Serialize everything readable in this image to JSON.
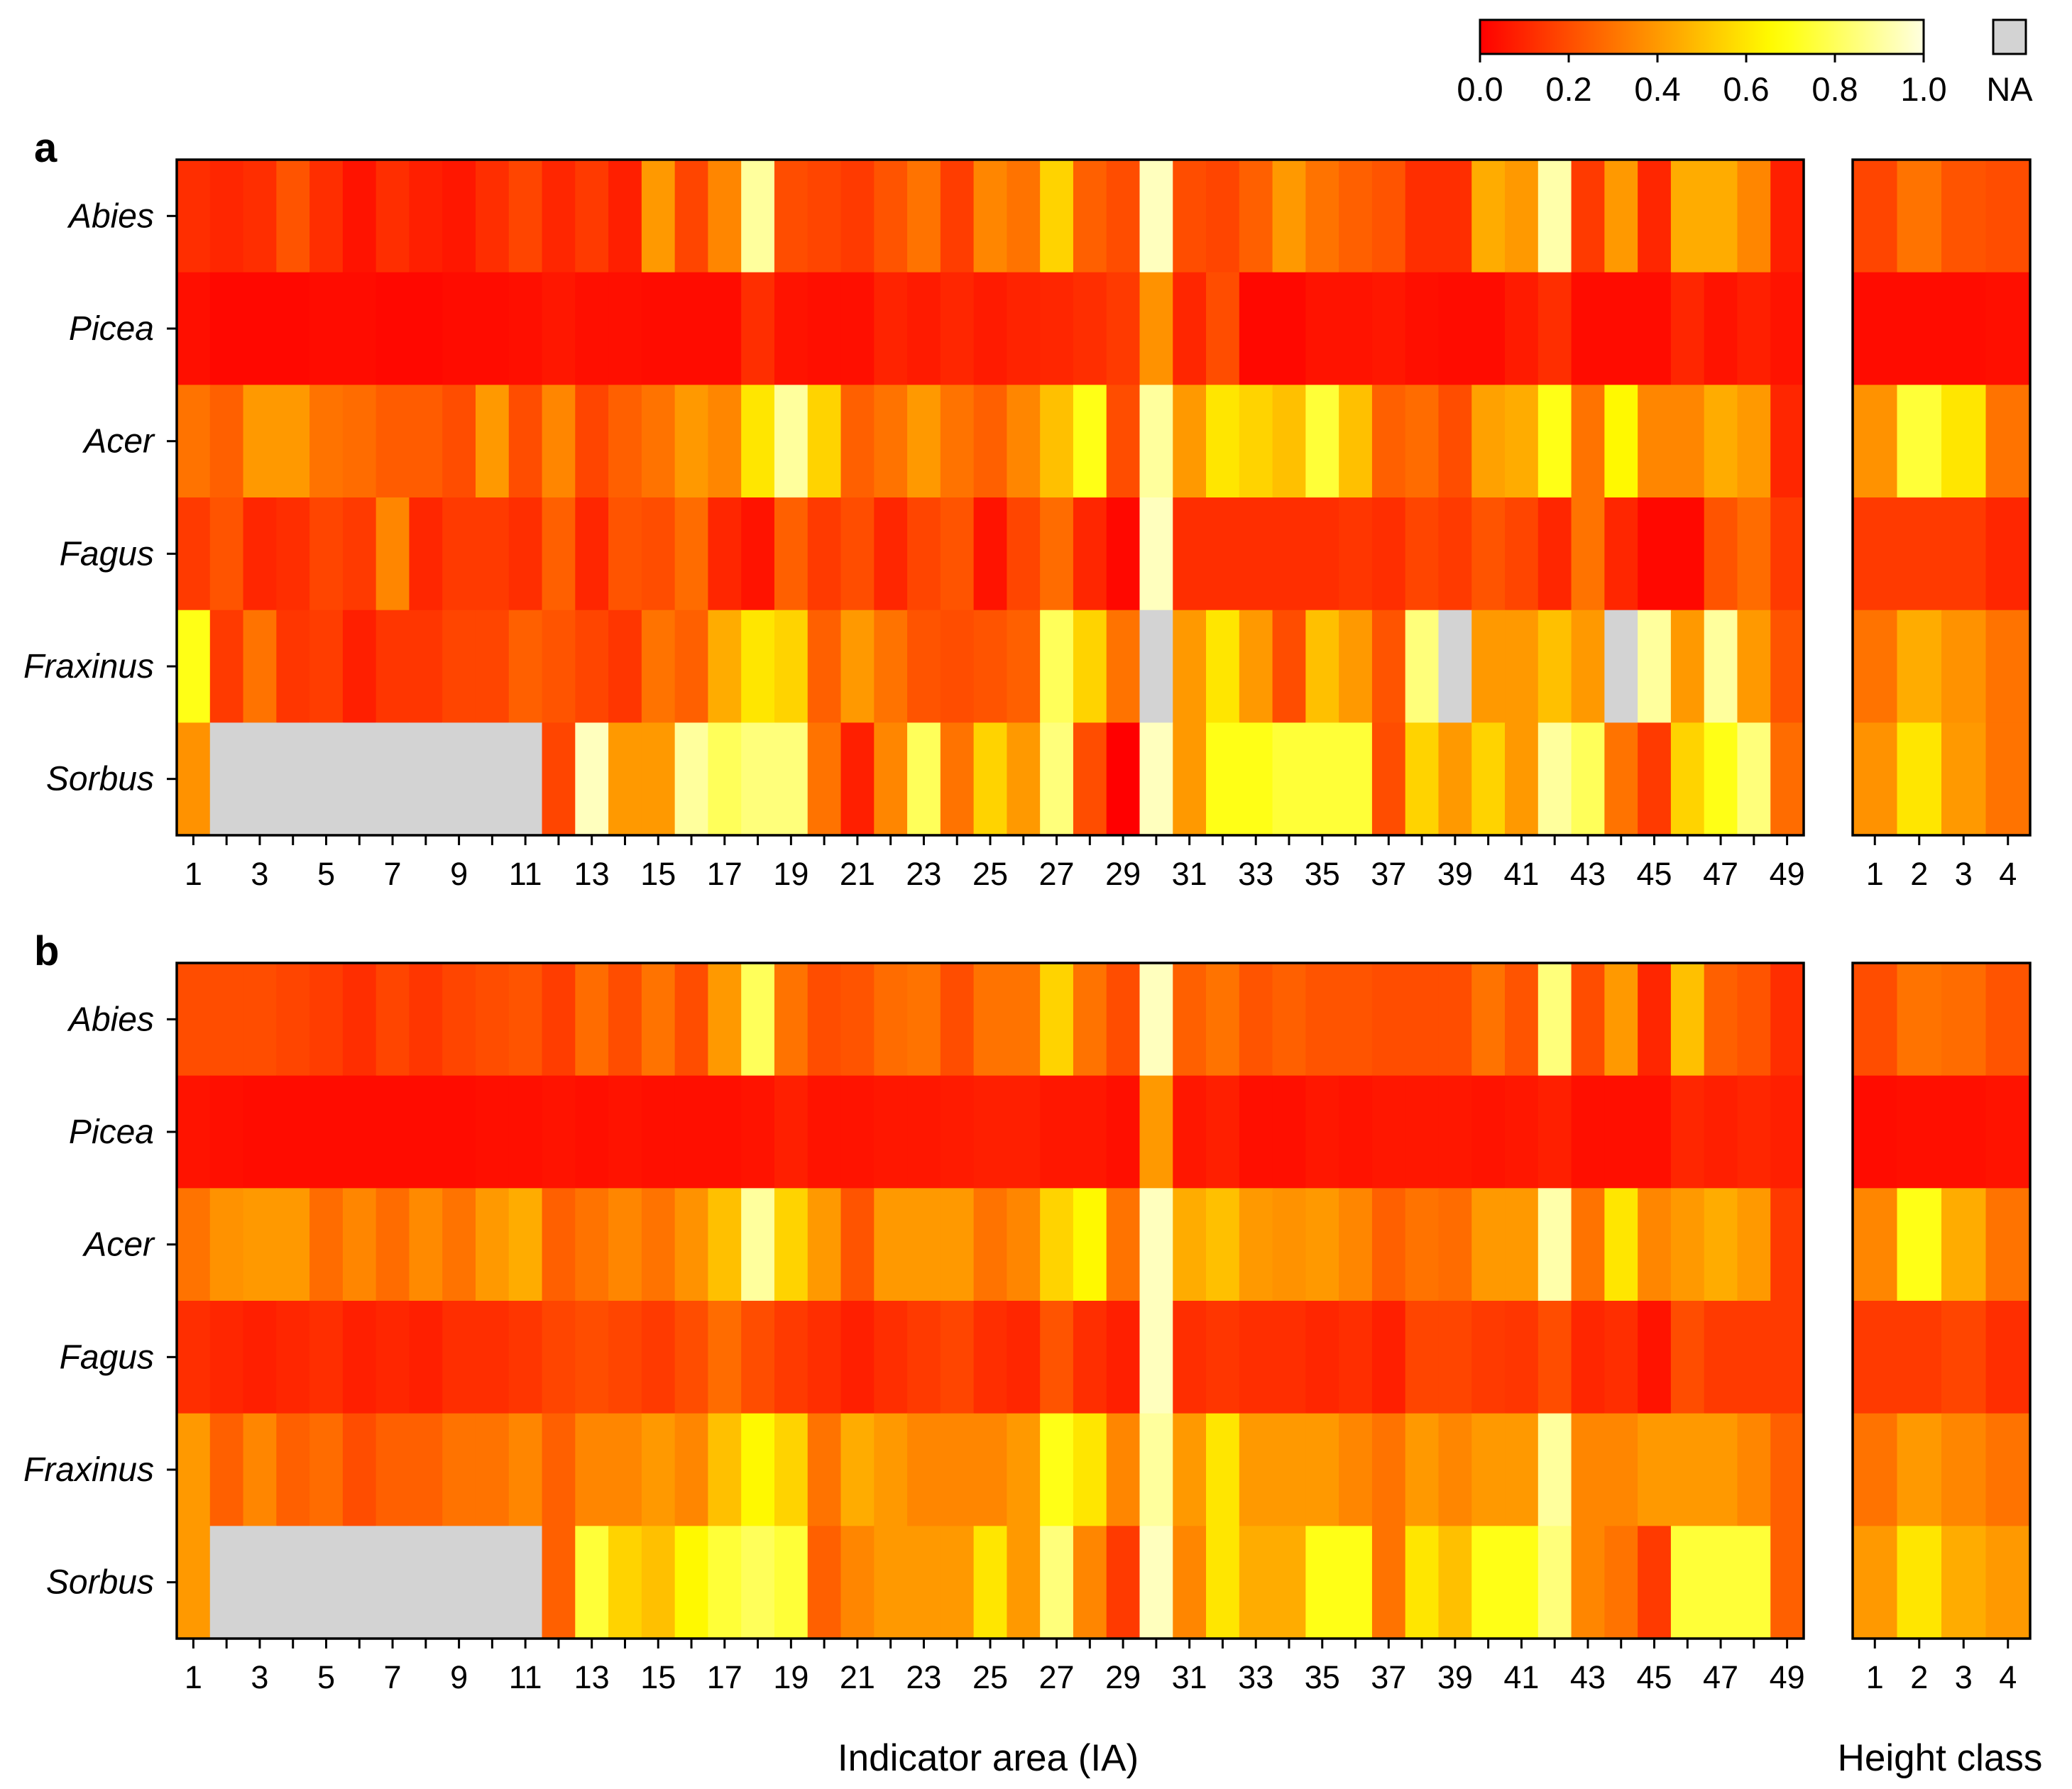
{
  "chart_data": {
    "type": "heatmap",
    "colorscale": {
      "min": 0.0,
      "max": 1.0,
      "stops": [
        "#ff0000",
        "#ff8000",
        "#ffff00",
        "#ffffe0"
      ],
      "na_color": "#d3d3d3"
    },
    "legend": {
      "ticks": [
        "0.0",
        "0.2",
        "0.4",
        "0.6",
        "0.8",
        "1.0"
      ],
      "na_label": "NA",
      "placement": "top-right"
    },
    "rows": [
      "Abies",
      "Picea",
      "Acer",
      "Fagus",
      "Fraxinus",
      "Sorbus"
    ],
    "x_tick_labels": [
      "1",
      "3",
      "5",
      "7",
      "9",
      "11",
      "13",
      "15",
      "17",
      "19",
      "21",
      "23",
      "25",
      "27",
      "29",
      "31",
      "33",
      "35",
      "37",
      "39",
      "41",
      "43",
      "45",
      "47",
      "49"
    ],
    "height_class_tick_labels": [
      "1",
      "2",
      "3",
      "4"
    ],
    "xlabel": "Indicator area (IA)",
    "xlabel_height": "Height class",
    "panels": [
      {
        "label": "a",
        "ia": [
          [
            0.12,
            0.1,
            0.12,
            0.22,
            0.12,
            0.05,
            0.12,
            0.08,
            0.06,
            0.12,
            0.18,
            0.1,
            0.15,
            0.08,
            0.4,
            0.18,
            0.35,
            0.9,
            0.2,
            0.18,
            0.15,
            0.22,
            0.3,
            0.16,
            0.35,
            0.3,
            0.55,
            0.25,
            0.2,
            0.95,
            0.2,
            0.18,
            0.25,
            0.4,
            0.3,
            0.25,
            0.22,
            0.12,
            0.12,
            0.45,
            0.4,
            0.92,
            0.15,
            0.4,
            0.1,
            0.45,
            0.45,
            0.35,
            0.08
          ],
          [
            0.04,
            0.02,
            0.02,
            0.02,
            0.03,
            0.03,
            0.02,
            0.02,
            0.03,
            0.03,
            0.04,
            0.06,
            0.04,
            0.04,
            0.03,
            0.03,
            0.03,
            0.12,
            0.05,
            0.04,
            0.04,
            0.09,
            0.07,
            0.1,
            0.07,
            0.09,
            0.1,
            0.12,
            0.15,
            0.38,
            0.1,
            0.2,
            0.02,
            0.02,
            0.05,
            0.05,
            0.06,
            0.04,
            0.03,
            0.03,
            0.07,
            0.12,
            0.03,
            0.03,
            0.03,
            0.1,
            0.05,
            0.08,
            0.05
          ],
          [
            0.3,
            0.25,
            0.4,
            0.4,
            0.3,
            0.28,
            0.24,
            0.24,
            0.2,
            0.4,
            0.2,
            0.35,
            0.18,
            0.25,
            0.3,
            0.4,
            0.35,
            0.6,
            0.9,
            0.55,
            0.25,
            0.3,
            0.4,
            0.3,
            0.25,
            0.35,
            0.5,
            0.7,
            0.2,
            0.9,
            0.4,
            0.6,
            0.55,
            0.5,
            0.75,
            0.5,
            0.25,
            0.28,
            0.2,
            0.42,
            0.45,
            0.7,
            0.3,
            0.65,
            0.35,
            0.35,
            0.45,
            0.4,
            0.1
          ],
          [
            0.15,
            0.22,
            0.1,
            0.12,
            0.18,
            0.15,
            0.35,
            0.1,
            0.15,
            0.15,
            0.12,
            0.25,
            0.1,
            0.22,
            0.2,
            0.28,
            0.1,
            0.05,
            0.25,
            0.15,
            0.2,
            0.1,
            0.18,
            0.22,
            0.05,
            0.18,
            0.28,
            0.1,
            0.02,
            0.95,
            0.12,
            0.12,
            0.12,
            0.12,
            0.12,
            0.14,
            0.12,
            0.18,
            0.15,
            0.22,
            0.18,
            0.1,
            0.3,
            0.1,
            0.02,
            0.02,
            0.22,
            0.28,
            0.15
          ],
          [
            0.7,
            0.15,
            0.3,
            0.14,
            0.16,
            0.08,
            0.14,
            0.14,
            0.18,
            0.18,
            0.25,
            0.22,
            0.18,
            0.14,
            0.3,
            0.25,
            0.45,
            0.6,
            0.55,
            0.25,
            0.4,
            0.3,
            0.22,
            0.2,
            0.22,
            0.25,
            0.8,
            0.55,
            0.3,
            null,
            0.4,
            0.6,
            0.4,
            0.2,
            0.5,
            0.4,
            0.22,
            0.85,
            null,
            0.4,
            0.4,
            0.5,
            0.4,
            null,
            0.9,
            0.4,
            0.9,
            0.4,
            0.22
          ],
          [
            0.38,
            null,
            null,
            null,
            null,
            null,
            null,
            null,
            null,
            null,
            null,
            0.18,
            0.95,
            0.4,
            0.4,
            0.9,
            0.8,
            0.85,
            0.85,
            0.3,
            0.08,
            0.35,
            0.8,
            0.3,
            0.55,
            0.4,
            0.85,
            0.2,
            0.0,
            0.95,
            0.4,
            0.7,
            0.7,
            0.75,
            0.75,
            0.75,
            0.2,
            0.55,
            0.4,
            0.55,
            0.4,
            0.9,
            0.8,
            0.3,
            0.15,
            0.55,
            0.7,
            0.85,
            0.28
          ]
        ],
        "height": [
          [
            0.18,
            0.3,
            0.22,
            0.2
          ],
          [
            0.03,
            0.03,
            0.03,
            0.04
          ],
          [
            0.38,
            0.75,
            0.6,
            0.3
          ],
          [
            0.15,
            0.15,
            0.15,
            0.1
          ],
          [
            0.3,
            0.45,
            0.38,
            0.3
          ],
          [
            0.38,
            0.6,
            0.4,
            0.3
          ]
        ]
      },
      {
        "label": "b",
        "ia": [
          [
            0.2,
            0.2,
            0.2,
            0.18,
            0.16,
            0.12,
            0.18,
            0.14,
            0.18,
            0.2,
            0.22,
            0.16,
            0.28,
            0.2,
            0.3,
            0.2,
            0.4,
            0.8,
            0.3,
            0.2,
            0.22,
            0.28,
            0.3,
            0.2,
            0.3,
            0.3,
            0.55,
            0.3,
            0.2,
            0.95,
            0.25,
            0.3,
            0.22,
            0.25,
            0.22,
            0.22,
            0.2,
            0.2,
            0.2,
            0.3,
            0.22,
            0.85,
            0.2,
            0.4,
            0.1,
            0.5,
            0.25,
            0.22,
            0.12
          ],
          [
            0.05,
            0.04,
            0.03,
            0.03,
            0.03,
            0.03,
            0.03,
            0.03,
            0.03,
            0.04,
            0.04,
            0.05,
            0.04,
            0.05,
            0.04,
            0.04,
            0.04,
            0.05,
            0.08,
            0.05,
            0.05,
            0.06,
            0.06,
            0.07,
            0.08,
            0.08,
            0.06,
            0.06,
            0.04,
            0.4,
            0.06,
            0.08,
            0.04,
            0.04,
            0.06,
            0.05,
            0.06,
            0.06,
            0.06,
            0.05,
            0.06,
            0.08,
            0.04,
            0.04,
            0.04,
            0.1,
            0.08,
            0.1,
            0.08
          ],
          [
            0.3,
            0.38,
            0.4,
            0.4,
            0.28,
            0.35,
            0.28,
            0.36,
            0.3,
            0.4,
            0.45,
            0.25,
            0.3,
            0.35,
            0.3,
            0.38,
            0.5,
            0.9,
            0.55,
            0.4,
            0.22,
            0.4,
            0.4,
            0.4,
            0.3,
            0.35,
            0.55,
            0.65,
            0.3,
            0.95,
            0.45,
            0.5,
            0.4,
            0.38,
            0.4,
            0.35,
            0.25,
            0.3,
            0.28,
            0.4,
            0.4,
            0.92,
            0.3,
            0.6,
            0.35,
            0.4,
            0.45,
            0.4,
            0.15
          ],
          [
            0.12,
            0.1,
            0.08,
            0.1,
            0.12,
            0.08,
            0.1,
            0.08,
            0.12,
            0.12,
            0.14,
            0.18,
            0.2,
            0.18,
            0.15,
            0.2,
            0.28,
            0.2,
            0.15,
            0.12,
            0.08,
            0.12,
            0.15,
            0.18,
            0.12,
            0.1,
            0.22,
            0.12,
            0.08,
            0.95,
            0.12,
            0.14,
            0.12,
            0.12,
            0.1,
            0.12,
            0.08,
            0.18,
            0.18,
            0.15,
            0.14,
            0.2,
            0.1,
            0.12,
            0.05,
            0.2,
            0.15,
            0.15,
            0.15
          ],
          [
            0.4,
            0.25,
            0.35,
            0.25,
            0.28,
            0.2,
            0.25,
            0.25,
            0.3,
            0.3,
            0.35,
            0.25,
            0.35,
            0.35,
            0.4,
            0.35,
            0.5,
            0.65,
            0.55,
            0.3,
            0.45,
            0.4,
            0.35,
            0.35,
            0.35,
            0.4,
            0.7,
            0.6,
            0.35,
            0.9,
            0.4,
            0.6,
            0.4,
            0.4,
            0.4,
            0.35,
            0.3,
            0.4,
            0.35,
            0.4,
            0.4,
            0.9,
            0.35,
            0.35,
            0.4,
            0.4,
            0.4,
            0.35,
            0.25
          ],
          [
            0.4,
            null,
            null,
            null,
            null,
            null,
            null,
            null,
            null,
            null,
            null,
            0.25,
            0.75,
            0.55,
            0.5,
            0.65,
            0.75,
            0.8,
            0.75,
            0.25,
            0.35,
            0.4,
            0.4,
            0.4,
            0.6,
            0.4,
            0.85,
            0.35,
            0.15,
            0.95,
            0.35,
            0.6,
            0.45,
            0.45,
            0.7,
            0.7,
            0.3,
            0.6,
            0.5,
            0.7,
            0.7,
            0.85,
            0.35,
            0.3,
            0.15,
            0.75,
            0.75,
            0.75,
            0.25
          ]
        ],
        "height": [
          [
            0.2,
            0.3,
            0.28,
            0.22
          ],
          [
            0.03,
            0.04,
            0.04,
            0.05
          ],
          [
            0.35,
            0.7,
            0.45,
            0.3
          ],
          [
            0.15,
            0.15,
            0.18,
            0.12
          ],
          [
            0.3,
            0.4,
            0.35,
            0.3
          ],
          [
            0.4,
            0.6,
            0.45,
            0.4
          ]
        ]
      }
    ]
  }
}
